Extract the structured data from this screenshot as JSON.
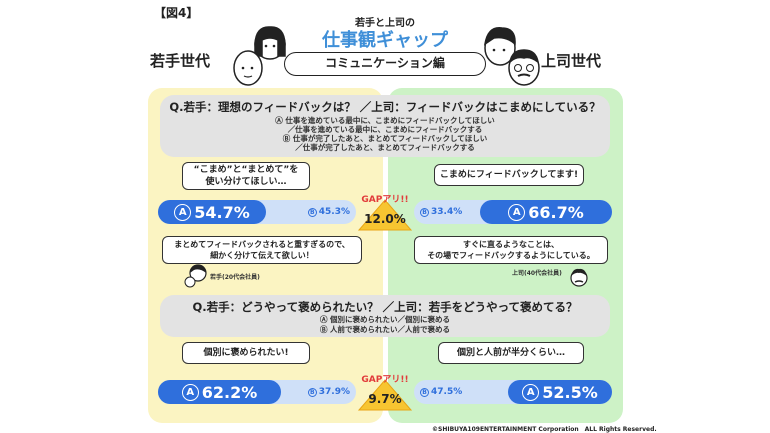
{
  "figure_label": "【図4】",
  "header": {
    "subtitle": "若手と上司の",
    "title": "仕事観ギャップ",
    "banner": "コミュニケーション編",
    "left_generation": "若手世代",
    "right_generation": "上司世代"
  },
  "q1": {
    "question": "Q.若手：理想のフィードバックは？ ／上司：フィードバックはこまめにしている？",
    "lines": [
      "Ⓐ 仕事を進めている最中に、こまめにフィードバックしてほしい",
      "／仕事を進めている最中に、こまめにフィードバックする",
      "Ⓑ 仕事が完了したあと、まとめてフィードバックしてほしい",
      "／仕事が完了したあと、まとめてフィードバックする"
    ],
    "young_bubble_line1": "“こまめ”と“まとめて”を",
    "young_bubble_line2": "使い分けてほしい…",
    "boss_bubble": "こまめにフィードバックしてます!",
    "young_comment_line1": "まとめてフィードバックされると重すぎるので、",
    "young_comment_line2": "細かく分けて伝えて欲しい！",
    "young_speaker": "若手(20代会社員)",
    "boss_comment_line1": "すぐに直るようなことは、",
    "boss_comment_line2": "その場でフィードバックするようにしている。",
    "boss_speaker": "上司(40代会社員)",
    "gap_label": "GAPアリ!!",
    "gap_value": "12.0%"
  },
  "q2": {
    "question": "Q.若手：どうやって褒められたい？ ／上司：若手をどうやって褒めてる？",
    "lines": [
      "Ⓐ 個別に褒められたい／個別に褒める",
      "Ⓑ 人前で褒められたい／人前で褒める"
    ],
    "young_bubble": "個別に褒められたい!",
    "boss_bubble": "個別と人前が半分くらい…",
    "gap_label": "GAPアリ!!",
    "gap_value": "9.7%"
  },
  "chart_data": [
    {
      "type": "bar",
      "question": "理想のフィードバック / フィードバックの仕方",
      "series": [
        {
          "name": "若手世代",
          "A": 54.7,
          "B": 45.3,
          "A_label": "54.7%",
          "B_label": "45.3%"
        },
        {
          "name": "上司世代",
          "A": 66.7,
          "B": 33.4,
          "A_label": "66.7%",
          "B_label": "33.4%"
        }
      ]
    },
    {
      "type": "bar",
      "question": "褒められ方 / 褒め方",
      "series": [
        {
          "name": "若手世代",
          "A": 62.2,
          "B": 37.9,
          "A_label": "62.2%",
          "B_label": "37.9%"
        },
        {
          "name": "上司世代",
          "A": 52.5,
          "B": 47.5,
          "A_label": "52.5%",
          "B_label": "47.5%"
        }
      ]
    }
  ],
  "marks": {
    "a": "A",
    "b": "B"
  },
  "colors": {
    "accent": "#2f6fdc",
    "bar_light": "#cfe0f8",
    "young_panel": "#fbf4c2",
    "boss_panel": "#cdf2c6",
    "gap": "#e23b3b",
    "title": "#3f8fd8"
  },
  "copyright": "©SHIBUYA109ENTERTAINMENT Corporation　ALL Rights Reserved."
}
